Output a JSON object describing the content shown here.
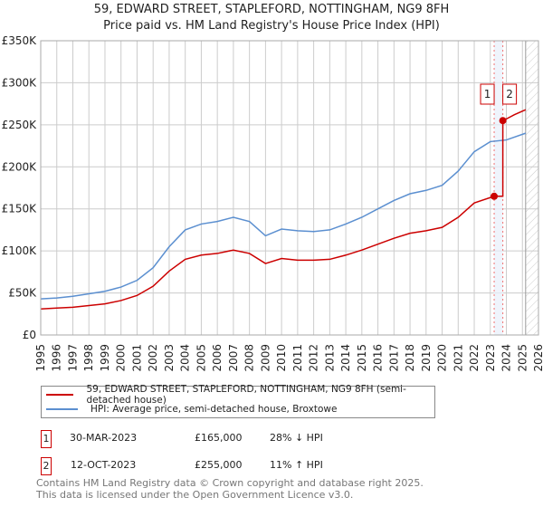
{
  "chart_data": {
    "type": "line",
    "title": "59, EDWARD STREET, STAPLEFORD, NOTTINGHAM, NG9 8FH",
    "subtitle": "Price paid vs. HM Land Registry's House Price Index (HPI)",
    "xlim": [
      1995,
      2026
    ],
    "ylim": [
      0,
      350000
    ],
    "yticks": [
      0,
      50000,
      100000,
      150000,
      200000,
      250000,
      300000,
      350000
    ],
    "ytick_labels": [
      "£0",
      "£50K",
      "£100K",
      "£150K",
      "£200K",
      "£250K",
      "£300K",
      "£350K"
    ],
    "xticks": [
      1995,
      1996,
      1997,
      1998,
      1999,
      2000,
      2001,
      2002,
      2003,
      2004,
      2005,
      2006,
      2007,
      2008,
      2009,
      2010,
      2011,
      2012,
      2013,
      2014,
      2015,
      2016,
      2017,
      2018,
      2019,
      2020,
      2021,
      2022,
      2023,
      2024,
      2025,
      2026
    ],
    "grid": true,
    "series": [
      {
        "name": "59, EDWARD STREET, STAPLEFORD, NOTTINGHAM, NG9 8FH (semi-detached house)",
        "color": "#cc0000",
        "x": [
          1995,
          1996,
          1997,
          1998,
          1999,
          2000,
          2001,
          2002,
          2003,
          2004,
          2005,
          2006,
          2007,
          2008,
          2009,
          2010,
          2011,
          2012,
          2013,
          2014,
          2015,
          2016,
          2017,
          2018,
          2019,
          2020,
          2021,
          2022,
          2023.24,
          2023.78,
          2023.78,
          2024,
          2024.5,
          2025.2
        ],
        "y": [
          31000,
          32000,
          33000,
          35000,
          37000,
          41000,
          47000,
          58000,
          76000,
          90000,
          95000,
          97000,
          101000,
          97000,
          85000,
          91000,
          89000,
          89000,
          90000,
          95000,
          101000,
          108000,
          115000,
          121000,
          124000,
          128000,
          140000,
          157000,
          165000,
          165000,
          255000,
          257000,
          262000,
          268000
        ]
      },
      {
        "name": "HPI: Average price, semi-detached house, Broxtowe",
        "color": "#5b8fd0",
        "x": [
          1995,
          1996,
          1997,
          1998,
          1999,
          2000,
          2001,
          2002,
          2003,
          2004,
          2005,
          2006,
          2007,
          2008,
          2009,
          2010,
          2011,
          2012,
          2013,
          2014,
          2015,
          2016,
          2017,
          2018,
          2019,
          2020,
          2021,
          2022,
          2023,
          2024,
          2025.2
        ],
        "y": [
          43000,
          44000,
          46000,
          49000,
          52000,
          57000,
          65000,
          80000,
          105000,
          125000,
          132000,
          135000,
          140000,
          135000,
          118000,
          126000,
          124000,
          123000,
          125000,
          132000,
          140000,
          150000,
          160000,
          168000,
          172000,
          178000,
          195000,
          218000,
          230000,
          232000,
          240000
        ]
      }
    ],
    "sales": [
      {
        "label": "1",
        "x": 2023.24,
        "y": 165000,
        "date": "30-MAR-2023",
        "price": "£165,000",
        "hpi": "28% ↓ HPI"
      },
      {
        "label": "2",
        "x": 2023.78,
        "y": 255000,
        "date": "12-OCT-2023",
        "price": "£255,000",
        "hpi": "11% ↑ HPI"
      }
    ],
    "forecast_start": 2025.2,
    "legend_position": "bottom"
  },
  "footer": [
    "Contains HM Land Registry data © Crown copyright and database right 2025.",
    "This data is licensed under the Open Government Licence v3.0."
  ]
}
